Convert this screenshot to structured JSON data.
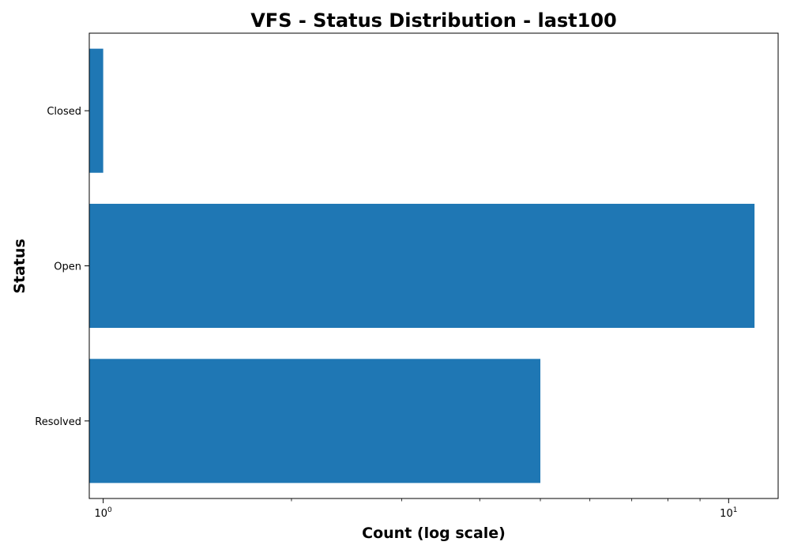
{
  "chart_data": {
    "type": "bar",
    "orientation": "horizontal",
    "title": "VFS - Status Distribution - last100",
    "xlabel": "Count (log scale)",
    "ylabel": "Status",
    "xscale": "log",
    "xlim": [
      0.95,
      12
    ],
    "x_major_ticks": [
      {
        "value": 1,
        "base": "10",
        "exp": "0"
      },
      {
        "value": 10,
        "base": "10",
        "exp": "1"
      }
    ],
    "x_minor_ticks": [
      2,
      3,
      4,
      5,
      6,
      7,
      8,
      9
    ],
    "categories": [
      "Closed",
      "Open",
      "Resolved"
    ],
    "values": [
      1,
      11,
      5
    ],
    "bar_color": "#1f77b4",
    "grid": false,
    "legend": false
  }
}
